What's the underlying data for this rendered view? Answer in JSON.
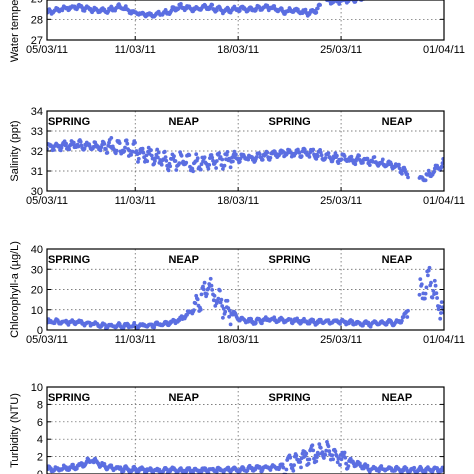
{
  "colors": {
    "points": "#5b6ee1",
    "axes": "#000000",
    "grid": "#555555"
  },
  "chart_data": [
    {
      "type": "scatter",
      "ylabel": "Water tempera",
      "y_ticks": [
        27,
        28,
        29
      ],
      "ylim": [
        27,
        30
      ],
      "x_ticks": [
        "05/03/11",
        "11/03/11",
        "18/03/11",
        "25/03/11",
        "01/04/11"
      ],
      "annotations": [],
      "trend_day": [
        0,
        1,
        2,
        3,
        4,
        5,
        6,
        7,
        8,
        9,
        10,
        11,
        12,
        13,
        14,
        15,
        16,
        17,
        18,
        19,
        20,
        21,
        22,
        23,
        24,
        25,
        26,
        27
      ],
      "trend_value": [
        28.3,
        28.5,
        28.6,
        28.5,
        28.4,
        28.6,
        28.3,
        28.2,
        28.3,
        28.6,
        28.5,
        28.6,
        28.4,
        28.5,
        28.5,
        28.6,
        28.4,
        28.4,
        28.3,
        28.9,
        28.9,
        29.0,
        29.1,
        29.3,
        29.6,
        29.4,
        29.6,
        29.4
      ],
      "gaps": [
        [
          18.6,
          19.0
        ]
      ]
    },
    {
      "type": "scatter",
      "ylabel": "Salinity (ppt)",
      "y_ticks": [
        30,
        31,
        32,
        33,
        34
      ],
      "ylim": [
        30,
        34
      ],
      "x_ticks": [
        "05/03/11",
        "11/03/11",
        "18/03/11",
        "25/03/11",
        "01/04/11"
      ],
      "annotations": [
        {
          "text": "SPRING",
          "day": 1.5
        },
        {
          "text": "NEAP",
          "day": 9.3
        },
        {
          "text": "SPRING",
          "day": 16.5
        },
        {
          "text": "NEAP",
          "day": 23.8
        }
      ],
      "trend_day": [
        0,
        2,
        4,
        6,
        8,
        10,
        12,
        14,
        16,
        18,
        20,
        22,
        24,
        25,
        26,
        27
      ],
      "trend_value": [
        32.2,
        32.3,
        32.2,
        32.0,
        31.5,
        31.4,
        31.6,
        31.7,
        31.9,
        31.9,
        31.6,
        31.5,
        31.2,
        30.4,
        30.8,
        31.4
      ],
      "gaps": [
        [
          24.6,
          25.3
        ]
      ]
    },
    {
      "type": "scatter",
      "ylabel": "Chlorophyll-a (µg/L)",
      "y_ticks": [
        0,
        10,
        20,
        30,
        40
      ],
      "ylim": [
        0,
        40
      ],
      "x_ticks": [
        "05/03/11",
        "11/03/11",
        "18/03/11",
        "25/03/11",
        "01/04/11"
      ],
      "annotations": [
        {
          "text": "SPRING",
          "day": 1.5
        },
        {
          "text": "NEAP",
          "day": 9.3
        },
        {
          "text": "SPRING",
          "day": 16.5
        },
        {
          "text": "NEAP",
          "day": 23.8
        }
      ],
      "trend_day": [
        0,
        2,
        4,
        6,
        8,
        9,
        10,
        11,
        12,
        13,
        14,
        15,
        16,
        18,
        20,
        22,
        24,
        25,
        26,
        27
      ],
      "trend_value": [
        4,
        4,
        2,
        2,
        3,
        5,
        10,
        22,
        12,
        6,
        4,
        5,
        5,
        4,
        4,
        3,
        4,
        14,
        25,
        8
      ],
      "gaps": [
        [
          24.6,
          25.3
        ]
      ]
    },
    {
      "type": "scatter",
      "ylabel": "Turbidity (NTU)",
      "y_ticks": [
        0,
        2,
        4,
        6,
        8,
        10
      ],
      "ylim": [
        0,
        10
      ],
      "x_ticks": [],
      "annotations": [
        {
          "text": "SPRING",
          "day": 1.5
        },
        {
          "text": "NEAP",
          "day": 9.3
        },
        {
          "text": "SPRING",
          "day": 16.5
        },
        {
          "text": "NEAP",
          "day": 23.8
        }
      ],
      "trend_day": [
        0,
        2,
        3,
        4,
        5,
        6,
        8,
        10,
        12,
        14,
        16,
        17,
        18,
        19,
        20,
        22,
        24,
        26,
        27
      ],
      "trend_value": [
        0.5,
        0.8,
        1.6,
        0.8,
        0.6,
        0.5,
        0.4,
        0.4,
        0.5,
        0.6,
        0.8,
        1.5,
        2.2,
        2.8,
        1.8,
        0.6,
        0.5,
        0.5,
        0.5
      ],
      "gaps": []
    }
  ]
}
